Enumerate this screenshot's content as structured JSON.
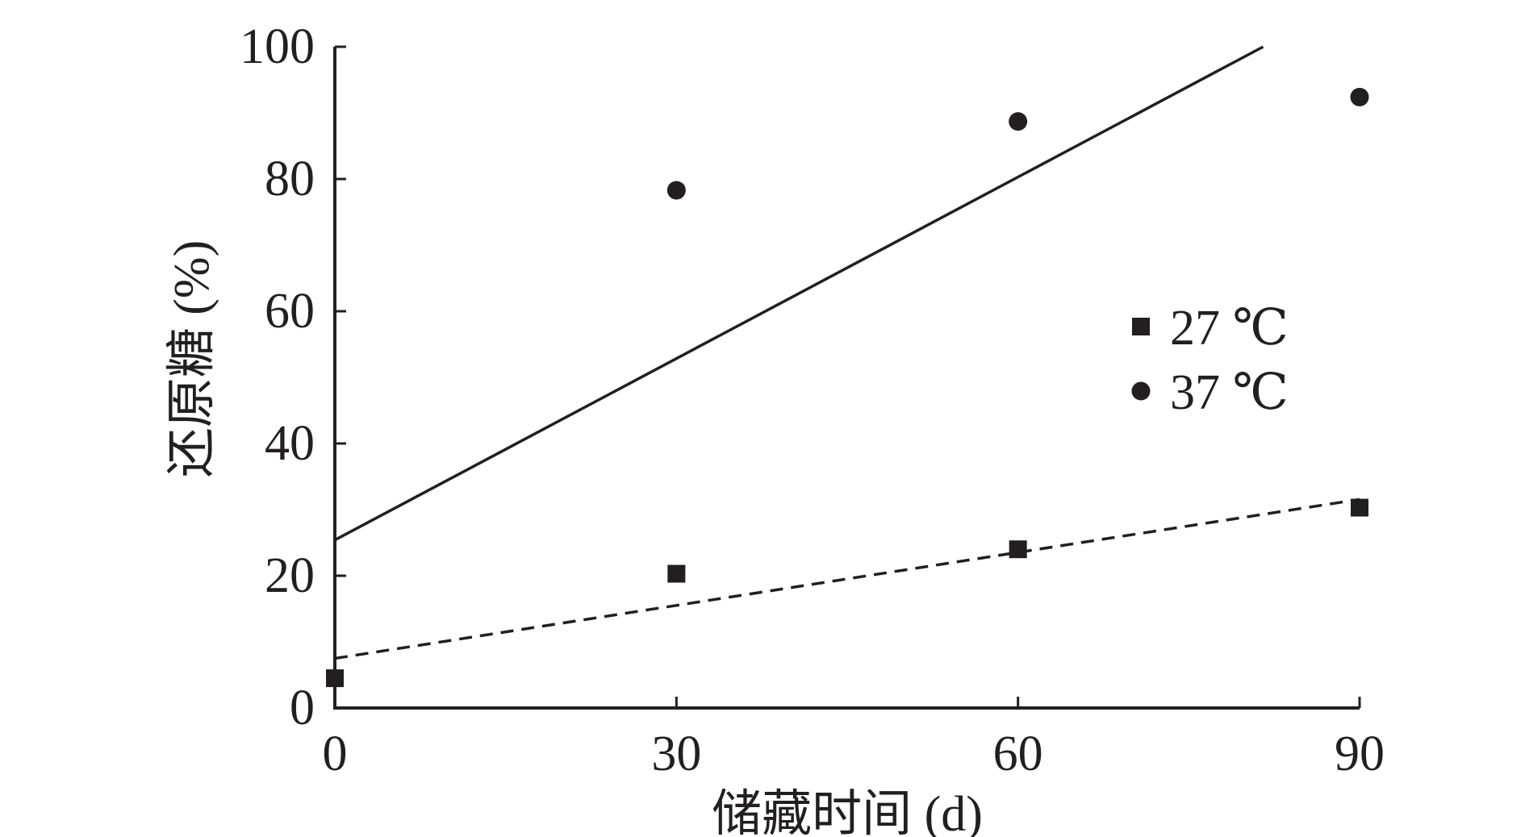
{
  "chart_data": {
    "type": "scatter",
    "xlabel": "储藏时间 (d)",
    "ylabel": "还原糖 (%)",
    "xlim": [
      0,
      90
    ],
    "ylim": [
      0,
      100
    ],
    "x_ticks": [
      "0",
      "30",
      "60",
      "90"
    ],
    "y_ticks": [
      "0",
      "20",
      "40",
      "60",
      "80",
      "100"
    ],
    "grid": false,
    "legend_position": "right",
    "series": [
      {
        "name": "27 ℃",
        "marker": "square",
        "x": [
          0,
          30,
          60,
          90
        ],
        "y": [
          4.5,
          20.3,
          24.0,
          30.3
        ],
        "trendline": {
          "style": "dashed",
          "intercept": 7.5,
          "slope": 0.2672
        }
      },
      {
        "name": "37 ℃",
        "marker": "circle",
        "x": [
          30,
          60,
          90
        ],
        "y": [
          78.3,
          88.7,
          92.4
        ],
        "trendline": {
          "style": "solid",
          "intercept": 25.4,
          "slope": 0.915
        }
      }
    ],
    "colors": {
      "ink": "#231f20",
      "background": "#ffffff"
    }
  }
}
